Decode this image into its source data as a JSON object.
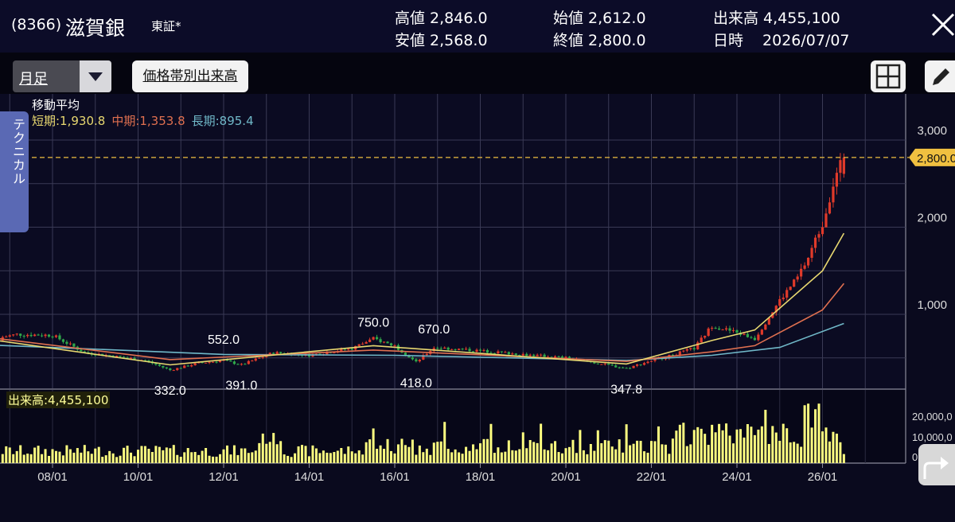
{
  "header": {
    "code": "(8366)",
    "name": "滋賀銀",
    "exchange": "東証*",
    "quotes": [
      {
        "label": "高値",
        "value": "2,846.0"
      },
      {
        "label": "安値",
        "value": "2,568.0"
      },
      {
        "label": "始値",
        "value": "2,612.0"
      },
      {
        "label": "終値",
        "value": "2,800.0"
      },
      {
        "label": "出来高",
        "value": "4,455,100"
      },
      {
        "label": "日時",
        "value": "2026/07/07"
      }
    ]
  },
  "toolbar": {
    "period": "月足",
    "volume_by_price": "価格帯別出来高"
  },
  "side_tab": "テクニカル",
  "moving_average": {
    "title": "移動平均",
    "short": "短期:1,930.8",
    "mid": "中期:1,353.8",
    "long": "長期:895.4"
  },
  "volume_label": "出来高:4,455,100",
  "colors": {
    "up": "#e03a2a",
    "down": "#2fa84a",
    "ma_short": "#e8d870",
    "ma_mid": "#e07050",
    "ma_long": "#70b8c8",
    "volume": "#ffff80",
    "price_line": "#f0c040"
  },
  "chart_data": {
    "type": "candlestick",
    "x_tick_labels": [
      "08/01",
      "10/01",
      "12/01",
      "14/01",
      "16/01",
      "18/01",
      "20/01",
      "22/01",
      "24/01",
      "26/01"
    ],
    "y_tick_labels": [
      "3,000",
      "2,000",
      "1,000"
    ],
    "volume_tick_labels": [
      "20,000,0",
      "10,000,0",
      "0"
    ],
    "current_price": "2,800.0",
    "annotations": [
      {
        "text": "332.0",
        "date": "2010/10",
        "value": 332
      },
      {
        "text": "552.0",
        "date": "2012/01",
        "value": 552
      },
      {
        "text": "391.0",
        "date": "2012/06",
        "value": 391
      },
      {
        "text": "750.0",
        "date": "2015/07",
        "value": 750
      },
      {
        "text": "418.0",
        "date": "2016/07",
        "value": 418
      },
      {
        "text": "670.0",
        "date": "2016/12",
        "value": 670
      },
      {
        "text": "347.8",
        "date": "2021/06",
        "value": 347.8
      }
    ],
    "price_path": [
      {
        "date": "2006/06",
        "value": 700
      },
      {
        "date": "2007/03",
        "value": 770
      },
      {
        "date": "2008/01",
        "value": 760
      },
      {
        "date": "2008/10",
        "value": 560
      },
      {
        "date": "2009/06",
        "value": 520
      },
      {
        "date": "2010/03",
        "value": 470
      },
      {
        "date": "2010/10",
        "value": 360
      },
      {
        "date": "2011/06",
        "value": 440
      },
      {
        "date": "2012/01",
        "value": 470
      },
      {
        "date": "2012/06",
        "value": 420
      },
      {
        "date": "2013/03",
        "value": 560
      },
      {
        "date": "2014/01",
        "value": 530
      },
      {
        "date": "2015/01",
        "value": 610
      },
      {
        "date": "2015/07",
        "value": 720
      },
      {
        "date": "2016/01",
        "value": 640
      },
      {
        "date": "2016/07",
        "value": 450
      },
      {
        "date": "2016/12",
        "value": 620
      },
      {
        "date": "2018/01",
        "value": 580
      },
      {
        "date": "2019/01",
        "value": 540
      },
      {
        "date": "2020/01",
        "value": 500
      },
      {
        "date": "2021/06",
        "value": 380
      },
      {
        "date": "2022/01",
        "value": 470
      },
      {
        "date": "2022/06",
        "value": 520
      },
      {
        "date": "2023/01",
        "value": 610
      },
      {
        "date": "2023/06",
        "value": 870
      },
      {
        "date": "2024/01",
        "value": 790
      },
      {
        "date": "2024/06",
        "value": 720
      },
      {
        "date": "2025/01",
        "value": 1160
      },
      {
        "date": "2025/06",
        "value": 1420
      },
      {
        "date": "2025/09",
        "value": 1650
      },
      {
        "date": "2026/01",
        "value": 2050
      },
      {
        "date": "2026/04",
        "value": 2500
      },
      {
        "date": "2026/07",
        "value": 2800
      }
    ],
    "ma_short_path": [
      {
        "date": "2006/06",
        "value": 720
      },
      {
        "date": "2010/10",
        "value": 420
      },
      {
        "date": "2015/07",
        "value": 640
      },
      {
        "date": "2021/06",
        "value": 430
      },
      {
        "date": "2023/06",
        "value": 700
      },
      {
        "date": "2024/06",
        "value": 820
      },
      {
        "date": "2026/01",
        "value": 1500
      },
      {
        "date": "2026/07",
        "value": 1930.8
      }
    ],
    "ma_mid_path": [
      {
        "date": "2006/06",
        "value": 740
      },
      {
        "date": "2010/10",
        "value": 480
      },
      {
        "date": "2015/07",
        "value": 590
      },
      {
        "date": "2021/06",
        "value": 460
      },
      {
        "date": "2023/06",
        "value": 570
      },
      {
        "date": "2024/06",
        "value": 640
      },
      {
        "date": "2026/01",
        "value": 1050
      },
      {
        "date": "2026/07",
        "value": 1353.8
      }
    ],
    "ma_long_path": [
      {
        "date": "2006/06",
        "value": 650
      },
      {
        "date": "2009/01",
        "value": 600
      },
      {
        "date": "2012/01",
        "value": 540
      },
      {
        "date": "2016/01",
        "value": 530
      },
      {
        "date": "2021/06",
        "value": 470
      },
      {
        "date": "2023/06",
        "value": 530
      },
      {
        "date": "2025/01",
        "value": 620
      },
      {
        "date": "2026/07",
        "value": 895.4
      }
    ]
  }
}
